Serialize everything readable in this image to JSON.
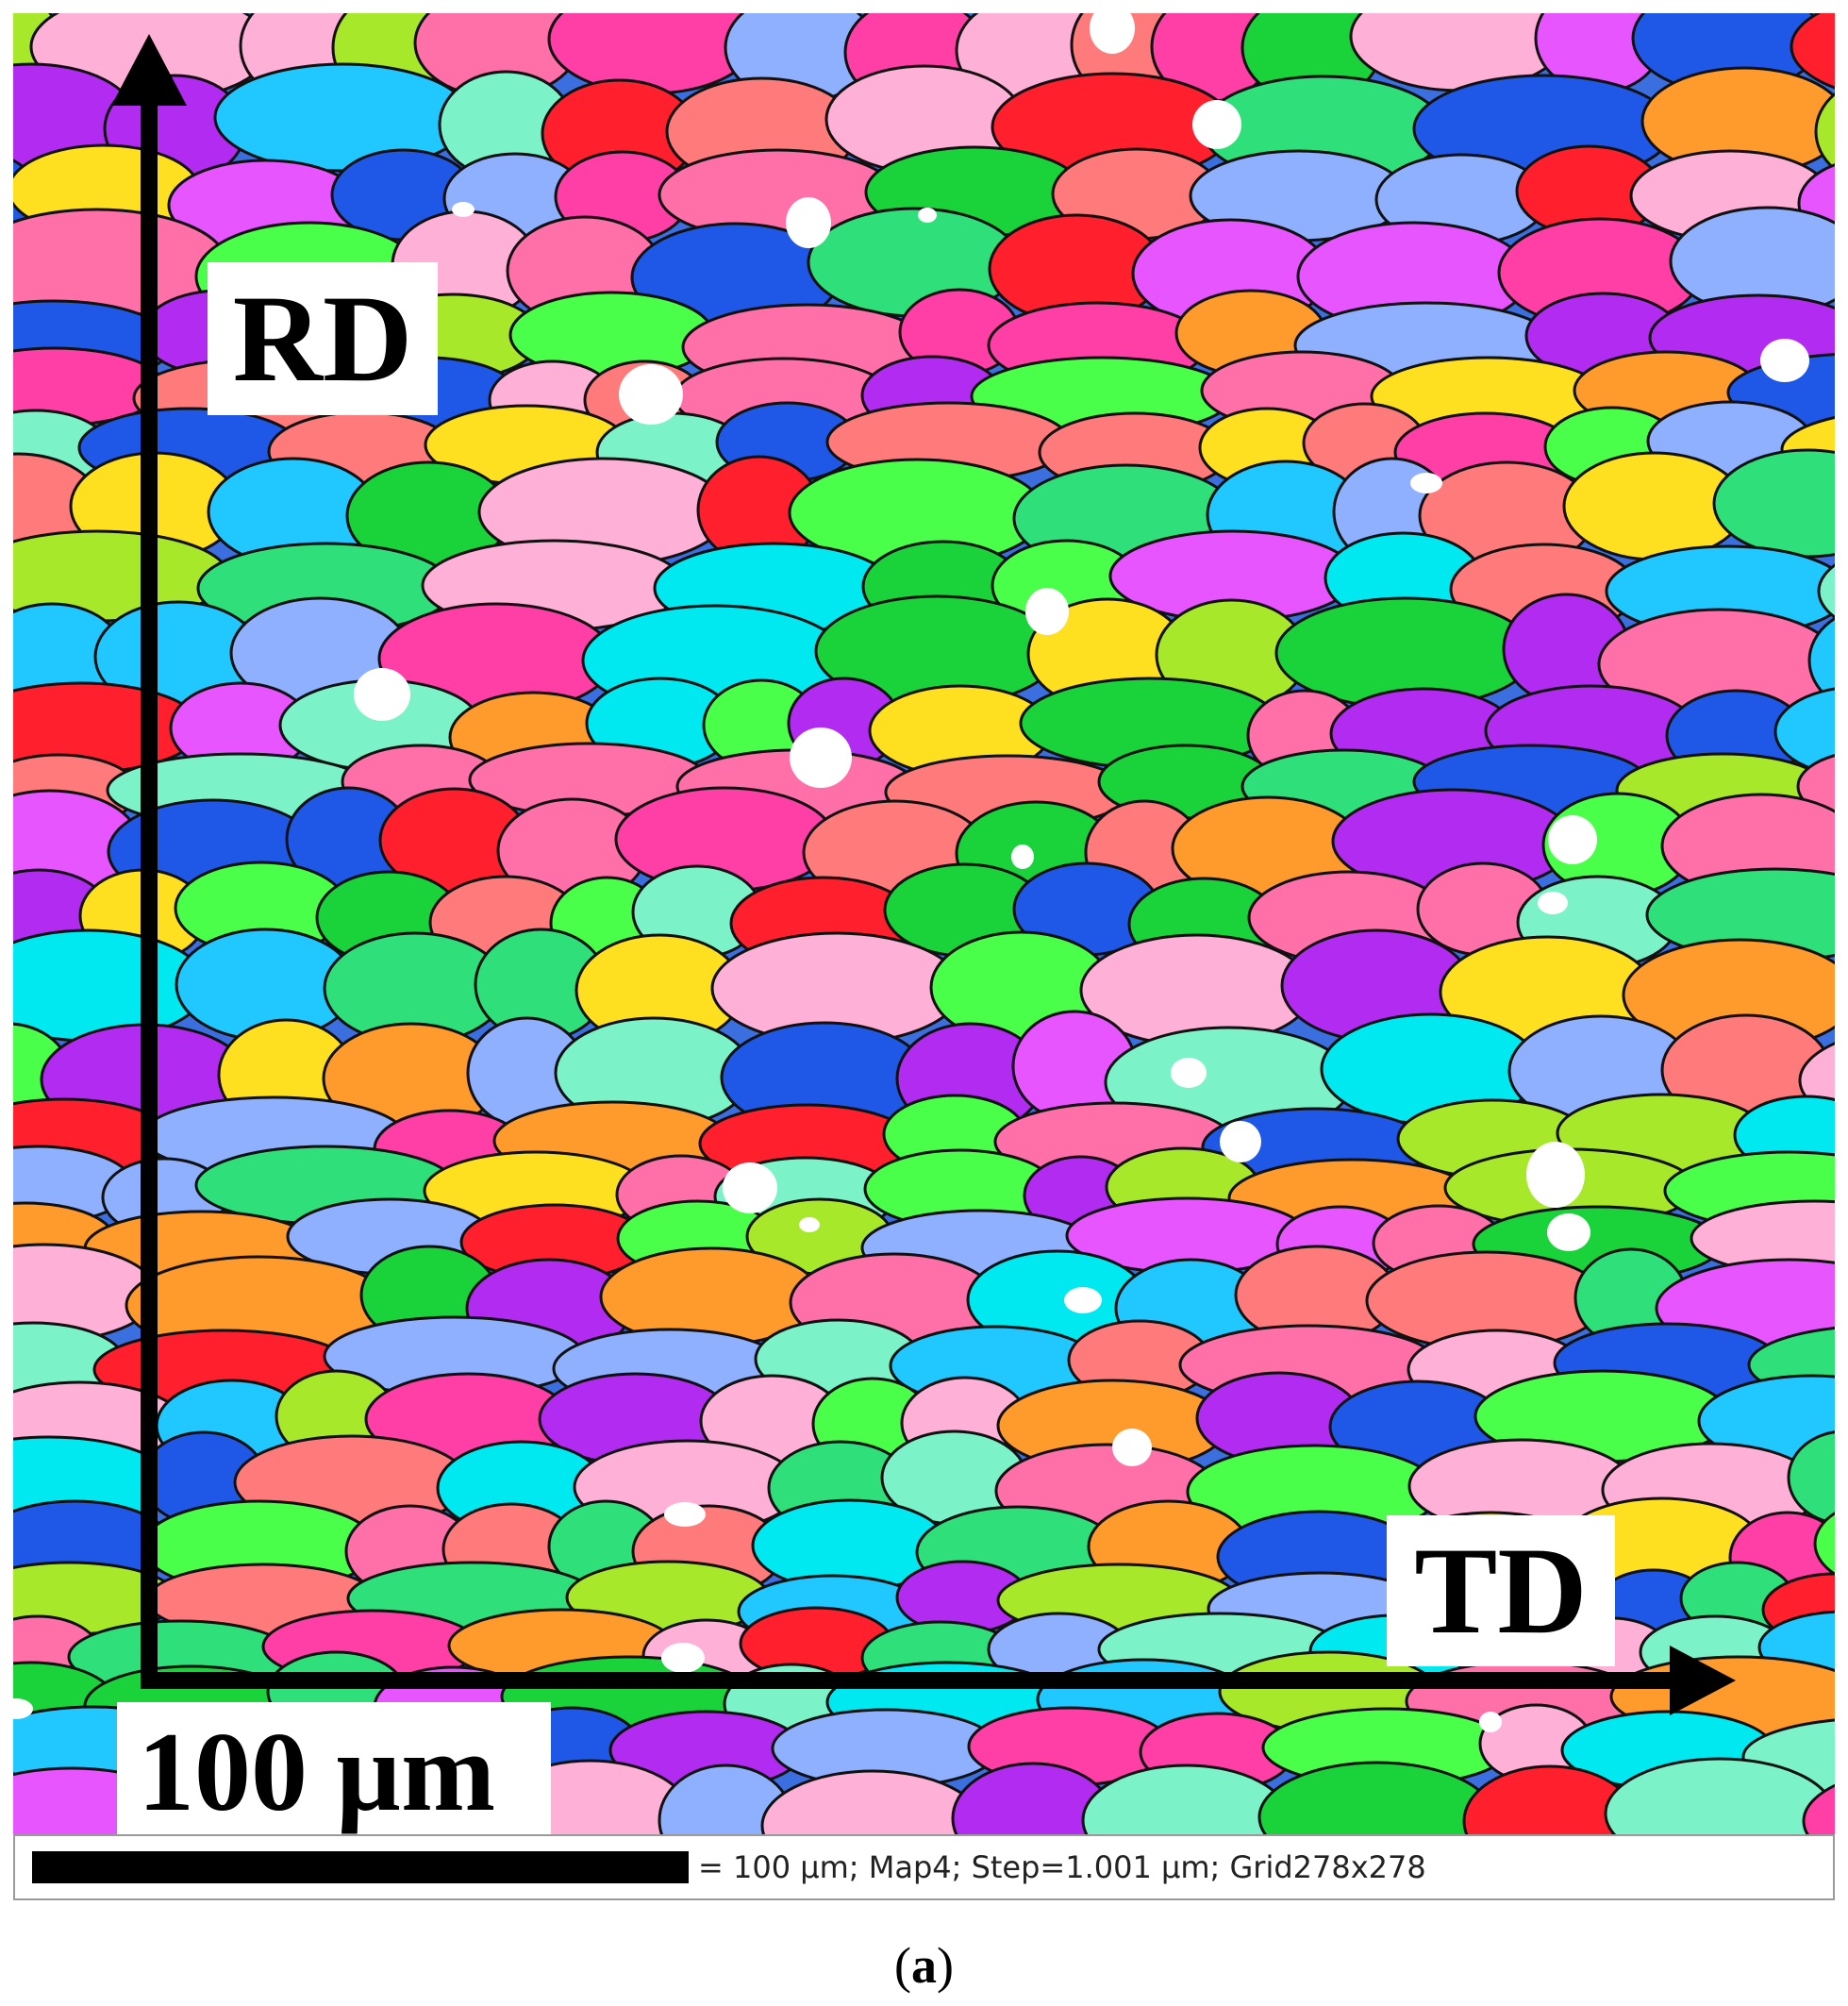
{
  "map": {
    "grain_palette": [
      "#ff1f2d",
      "#ff3ea6",
      "#1f58e6",
      "#1ad23a",
      "#00e8f0",
      "#ff9a2c",
      "#b12cf0",
      "#ff6fa8",
      "#2fe07a",
      "#ffe020",
      "#a8e82a",
      "#8fb0ff",
      "#ff7a7a",
      "#21c8ff",
      "#e655ff",
      "#4aff4a",
      "#ffb0d6",
      "#7cf2c8"
    ],
    "boundary_color": "#111111",
    "inclusion_color": "#ffffff"
  },
  "axes": {
    "vertical_label": "RD",
    "horizontal_label": "TD",
    "arrow_color": "#000000"
  },
  "scale": {
    "label": "100 µm"
  },
  "info_bar": {
    "text": "= 100 µm; Map4; Step=1.001 µm; Grid278x278"
  },
  "caption": {
    "open": "(",
    "letter": "a",
    "close": ")"
  }
}
